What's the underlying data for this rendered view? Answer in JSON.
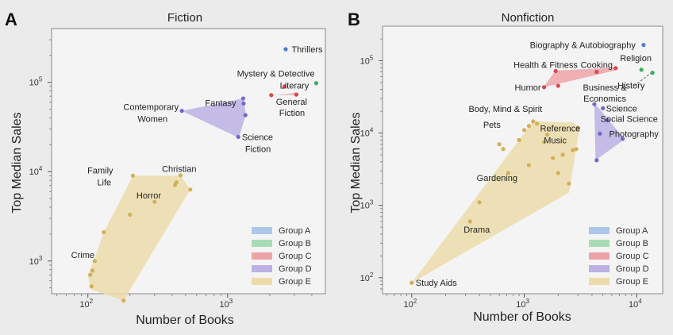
{
  "groups": [
    {
      "id": "A",
      "label": "Group A",
      "color": "#4a7fc9",
      "fill": "#adc7ea"
    },
    {
      "id": "B",
      "label": "Group B",
      "color": "#3cae5c",
      "fill": "#a9dcb6"
    },
    {
      "id": "C",
      "label": "Group C",
      "color": "#d9474e",
      "fill": "#eda4a7"
    },
    {
      "id": "D",
      "label": "Group D",
      "color": "#7667c7",
      "fill": "#bbb2e3"
    },
    {
      "id": "E",
      "label": "Group E",
      "color": "#d2b05a",
      "fill": "#ecdcaa"
    }
  ],
  "chart_data": [
    {
      "type": "scatter",
      "panel": "A",
      "title": "Fiction",
      "xlabel": "Number of Books",
      "ylabel": "Top Median Sales",
      "xscale": "log",
      "yscale": "log",
      "xlim": [
        55,
        5000
      ],
      "ylim": [
        430,
        400000
      ],
      "xticks": [
        {
          "v": 100,
          "b": "10",
          "e": "2"
        },
        {
          "v": 1000,
          "b": "10",
          "e": "3"
        }
      ],
      "yticks": [
        {
          "v": 1000,
          "b": "10",
          "e": "3"
        },
        {
          "v": 10000,
          "b": "10",
          "e": "4"
        },
        {
          "v": 100000,
          "b": "10",
          "e": "5"
        }
      ],
      "legend": "bottom-right",
      "hulls": [
        {
          "group": "D",
          "points": [
            [
              470,
              48000
            ],
            [
              1300,
              66000
            ],
            [
              1350,
              43000
            ],
            [
              1200,
              24000
            ]
          ]
        },
        {
          "group": "C",
          "points": [
            [
              2000,
              72000
            ],
            [
              3200,
              72000
            ],
            [
              3050,
              76000
            ],
            [
              2000,
              71000
            ]
          ]
        },
        {
          "group": "E",
          "points": [
            [
              110,
              1000
            ],
            [
              130,
              2100
            ],
            [
              210,
              9000
            ],
            [
              460,
              9000
            ],
            [
              540,
              6300
            ],
            [
              180,
              360
            ],
            [
              105,
              480
            ],
            [
              100,
              700
            ]
          ]
        }
      ],
      "points": [
        {
          "group": "A",
          "x": 2600,
          "y": 235000
        },
        {
          "group": "B",
          "x": 4300,
          "y": 98000
        },
        {
          "group": "C",
          "x": 2050,
          "y": 72000
        },
        {
          "group": "C",
          "x": 3100,
          "y": 73000
        },
        {
          "group": "C",
          "x": 2550,
          "y": 90000
        },
        {
          "group": "D",
          "x": 470,
          "y": 48000
        },
        {
          "group": "D",
          "x": 1290,
          "y": 66000
        },
        {
          "group": "D",
          "x": 1300,
          "y": 58000
        },
        {
          "group": "D",
          "x": 1340,
          "y": 43000
        },
        {
          "group": "D",
          "x": 1190,
          "y": 24500
        },
        {
          "group": "E",
          "x": 210,
          "y": 9000
        },
        {
          "group": "E",
          "x": 460,
          "y": 9100
        },
        {
          "group": "E",
          "x": 430,
          "y": 7600
        },
        {
          "group": "E",
          "x": 420,
          "y": 7100
        },
        {
          "group": "E",
          "x": 540,
          "y": 6300
        },
        {
          "group": "E",
          "x": 300,
          "y": 4600
        },
        {
          "group": "E",
          "x": 200,
          "y": 3300
        },
        {
          "group": "E",
          "x": 130,
          "y": 2100
        },
        {
          "group": "E",
          "x": 112,
          "y": 1000
        },
        {
          "group": "E",
          "x": 108,
          "y": 780
        },
        {
          "group": "E",
          "x": 104,
          "y": 700
        },
        {
          "group": "E",
          "x": 106,
          "y": 520
        },
        {
          "group": "E",
          "x": 180,
          "y": 360
        }
      ],
      "labels": [
        {
          "text": "Thrillers",
          "x": 2650,
          "y": 235000,
          "anchor": "start",
          "dx": 6,
          "dy": 4
        },
        {
          "text": "Mystery & Detective",
          "x": 4300,
          "y": 98000,
          "anchor": "end",
          "dx": -2,
          "dy": -8
        },
        {
          "text": "Literary",
          "x": 3000,
          "y": 77000,
          "anchor": "middle",
          "dx": 0,
          "dy": -5
        },
        {
          "text": "General",
          "x": 2050,
          "y": 72000,
          "anchor": "start",
          "dx": 6,
          "dy": 12
        },
        {
          "text": "Fiction",
          "x": 2050,
          "y": 72000,
          "anchor": "start",
          "dx": 10,
          "dy": 26
        },
        {
          "text": "Fantasy",
          "x": 1180,
          "y": 64000,
          "anchor": "end",
          "dx": -2,
          "dy": 8
        },
        {
          "text": "Contemporary",
          "x": 470,
          "y": 48000,
          "anchor": "end",
          "dx": -4,
          "dy": -1
        },
        {
          "text": "Women",
          "x": 470,
          "y": 48000,
          "anchor": "end",
          "dx": -18,
          "dy": 14
        },
        {
          "text": "Science",
          "x": 1200,
          "y": 24500,
          "anchor": "start",
          "dx": 4,
          "dy": 4
        },
        {
          "text": "Fiction",
          "x": 1200,
          "y": 24500,
          "anchor": "start",
          "dx": 8,
          "dy": 19
        },
        {
          "text": "Family",
          "x": 170,
          "y": 9000,
          "anchor": "middle",
          "dx": -25,
          "dy": -3
        },
        {
          "text": "Life",
          "x": 170,
          "y": 9000,
          "anchor": "middle",
          "dx": -20,
          "dy": 12
        },
        {
          "text": "Christian",
          "x": 450,
          "y": 9000,
          "anchor": "middle",
          "dx": 0,
          "dy": -5
        },
        {
          "text": "Horror",
          "x": 280,
          "y": 4800,
          "anchor": "middle",
          "dx": -2,
          "dy": -2
        },
        {
          "text": "Crime",
          "x": 110,
          "y": 1000,
          "anchor": "end",
          "dx": 1,
          "dy": -4
        }
      ]
    },
    {
      "type": "scatter",
      "panel": "B",
      "title": "Nonfiction",
      "xlabel": "Number of Books",
      "ylabel": "Top Median Sales",
      "xscale": "log",
      "yscale": "log",
      "xlim": [
        55,
        17000
      ],
      "ylim": [
        60,
        300000
      ],
      "xticks": [
        {
          "v": 100,
          "b": "10",
          "e": "2"
        },
        {
          "v": 1000,
          "b": "10",
          "e": "3"
        },
        {
          "v": 10000,
          "b": "10",
          "e": "4"
        }
      ],
      "yticks": [
        {
          "v": 100,
          "b": "10",
          "e": "2"
        },
        {
          "v": 1000,
          "b": "10",
          "e": "3"
        },
        {
          "v": 10000,
          "b": "10",
          "e": "4"
        },
        {
          "v": 100000,
          "b": "10",
          "e": "5"
        }
      ],
      "legend": "bottom-right",
      "hulls": [
        {
          "group": "C",
          "points": [
            [
              1500,
              44000
            ],
            [
              1900,
              73000
            ],
            [
              6400,
              80000
            ],
            [
              6600,
              74000
            ],
            [
              1500,
              43000
            ]
          ]
        },
        {
          "group": "D",
          "points": [
            [
              4200,
              25000
            ],
            [
              4500,
              23000
            ],
            [
              7800,
              8200
            ],
            [
              4300,
              4200
            ]
          ]
        },
        {
          "group": "E",
          "points": [
            [
              100,
              85
            ],
            [
              1200,
              14500
            ],
            [
              2700,
              14000
            ],
            [
              3100,
              11800
            ],
            [
              2500,
              1500
            ]
          ]
        }
      ],
      "points": [
        {
          "group": "A",
          "x": 11500,
          "y": 165000
        },
        {
          "group": "B",
          "x": 11000,
          "y": 75000
        },
        {
          "group": "B",
          "x": 13800,
          "y": 68000
        },
        {
          "group": "C",
          "x": 6500,
          "y": 79000
        },
        {
          "group": "C",
          "x": 4400,
          "y": 70000
        },
        {
          "group": "C",
          "x": 1500,
          "y": 43000
        },
        {
          "group": "C",
          "x": 1900,
          "y": 72000
        },
        {
          "group": "C",
          "x": 2000,
          "y": 45000
        },
        {
          "group": "D",
          "x": 4200,
          "y": 25000
        },
        {
          "group": "D",
          "x": 5000,
          "y": 22000
        },
        {
          "group": "D",
          "x": 5500,
          "y": 15000
        },
        {
          "group": "D",
          "x": 7500,
          "y": 8300
        },
        {
          "group": "D",
          "x": 4700,
          "y": 9800
        },
        {
          "group": "D",
          "x": 4400,
          "y": 4200
        },
        {
          "group": "E",
          "x": 100,
          "y": 85
        },
        {
          "group": "E",
          "x": 330,
          "y": 600
        },
        {
          "group": "E",
          "x": 400,
          "y": 1100
        },
        {
          "group": "E",
          "x": 720,
          "y": 2800
        },
        {
          "group": "E",
          "x": 1100,
          "y": 3600
        },
        {
          "group": "E",
          "x": 2500,
          "y": 2000
        },
        {
          "group": "E",
          "x": 2000,
          "y": 2800
        },
        {
          "group": "E",
          "x": 1800,
          "y": 4500
        },
        {
          "group": "E",
          "x": 2700,
          "y": 5800
        },
        {
          "group": "E",
          "x": 2900,
          "y": 6000
        },
        {
          "group": "E",
          "x": 3000,
          "y": 11800
        },
        {
          "group": "E",
          "x": 1200,
          "y": 14500
        },
        {
          "group": "E",
          "x": 1300,
          "y": 13500
        },
        {
          "group": "E",
          "x": 1000,
          "y": 11000
        },
        {
          "group": "E",
          "x": 900,
          "y": 8000
        },
        {
          "group": "E",
          "x": 600,
          "y": 7000
        },
        {
          "group": "E",
          "x": 650,
          "y": 6000
        },
        {
          "group": "E",
          "x": 1500,
          "y": 7500
        },
        {
          "group": "E",
          "x": 2200,
          "y": 5000
        },
        {
          "group": "E",
          "x": 1600,
          "y": 9500
        },
        {
          "group": "E",
          "x": 1100,
          "y": 12500
        }
      ],
      "arrow": {
        "x1": 9500,
        "y1": 45000,
        "x2": 13500,
        "y2": 68000
      },
      "labels": [
        {
          "text": "Biography & Autobiography",
          "x": 11500,
          "y": 165000,
          "anchor": "end",
          "dx": -10,
          "dy": 4
        },
        {
          "text": "Religion",
          "x": 11000,
          "y": 75000,
          "anchor": "start",
          "dx": -27,
          "dy": -11
        },
        {
          "text": "History",
          "x": 13800,
          "y": 68000,
          "anchor": "start",
          "dx": -44,
          "dy": 20
        },
        {
          "text": "Health & Fitness",
          "x": 1600,
          "y": 72000,
          "anchor": "middle",
          "dx": -2,
          "dy": -4
        },
        {
          "text": "Cooking",
          "x": 4400,
          "y": 70000,
          "anchor": "middle",
          "dx": 0,
          "dy": -5
        },
        {
          "text": "Humor",
          "x": 1500,
          "y": 43000,
          "anchor": "end",
          "dx": -4,
          "dy": 4
        },
        {
          "text": "Business &",
          "x": 5200,
          "y": 45000,
          "anchor": "middle",
          "dx": 0,
          "dy": 6
        },
        {
          "text": "Economics",
          "x": 5200,
          "y": 45000,
          "anchor": "middle",
          "dx": 0,
          "dy": 20
        },
        {
          "text": "Science",
          "x": 5000,
          "y": 22000,
          "anchor": "start",
          "dx": 4,
          "dy": 4
        },
        {
          "text": "Social Science",
          "x": 5000,
          "y": 15000,
          "anchor": "start",
          "dx": -3,
          "dy": 2
        },
        {
          "text": "Photography",
          "x": 5500,
          "y": 9800,
          "anchor": "start",
          "dx": 2,
          "dy": 4
        },
        {
          "text": "Body, Mind & Spirit",
          "x": 800,
          "y": 14500,
          "anchor": "middle",
          "dx": -10,
          "dy": -12
        },
        {
          "text": "Pets",
          "x": 800,
          "y": 13000,
          "anchor": "end",
          "dx": -16,
          "dy": 4
        },
        {
          "text": "Reference",
          "x": 1500,
          "y": 13500,
          "anchor": "start",
          "dx": -5,
          "dy": 10
        },
        {
          "text": "Music",
          "x": 2000,
          "y": 8000,
          "anchor": "start",
          "dx": -18,
          "dy": 4
        },
        {
          "text": "Gardening",
          "x": 720,
          "y": 2800,
          "anchor": "middle",
          "dx": -14,
          "dy": 10
        },
        {
          "text": "Drama",
          "x": 330,
          "y": 600,
          "anchor": "start",
          "dx": -8,
          "dy": 14
        },
        {
          "text": "Study Aids",
          "x": 100,
          "y": 85,
          "anchor": "start",
          "dx": 5,
          "dy": 4
        }
      ]
    }
  ]
}
